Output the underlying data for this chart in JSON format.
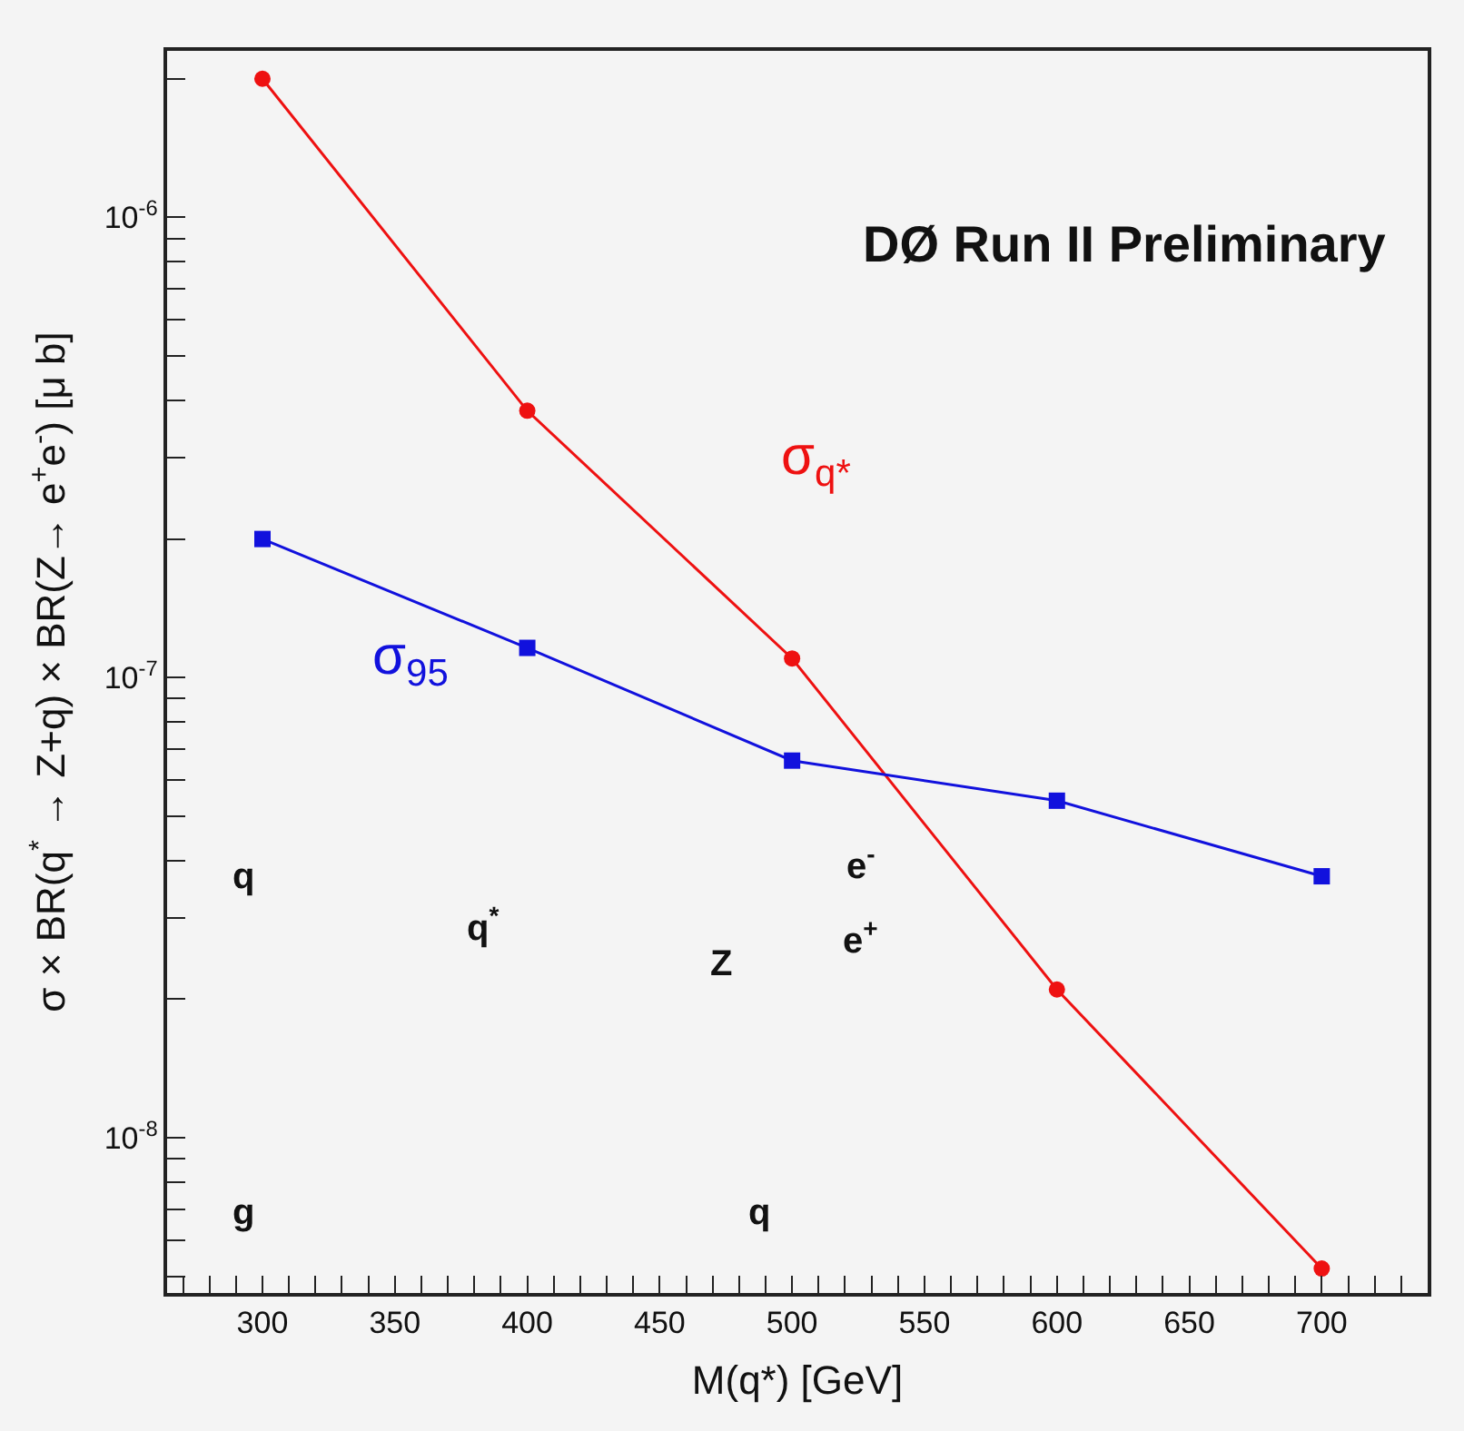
{
  "chart_data": {
    "type": "line",
    "xlabel": "M(q*) [GeV]",
    "ylabel": "σ × BR(q$^{*}$ → Z+q) × BR(Z→ e$^{+}$e$^{-}$) [μ b]",
    "x": [
      300,
      400,
      500,
      600,
      700
    ],
    "series": [
      {
        "name": "σ$_{q*}$",
        "color": "#ee1111",
        "marker": "circle",
        "values": [
          2e-06,
          3.8e-07,
          1.1e-07,
          2.1e-08,
          5.2e-09
        ]
      },
      {
        "name": "σ$_{95}$",
        "color": "#1111dd",
        "marker": "square",
        "values": [
          2e-07,
          1.16e-07,
          6.6e-08,
          5.4e-08,
          3.7e-08
        ]
      }
    ],
    "log": "y",
    "xlim": [
      264,
      740
    ],
    "ylim": [
      4.6e-09,
      2.3e-06
    ],
    "xticks": [
      {
        "value": 270,
        "label": null
      },
      {
        "value": 280,
        "label": null
      },
      {
        "value": 290,
        "label": null
      },
      300,
      {
        "value": 310,
        "label": null
      },
      {
        "value": 320,
        "label": null
      },
      {
        "value": 330,
        "label": null
      },
      {
        "value": 340,
        "label": null
      },
      350,
      {
        "value": 360,
        "label": null
      },
      {
        "value": 370,
        "label": null
      },
      {
        "value": 380,
        "label": null
      },
      {
        "value": 390,
        "label": null
      },
      400,
      {
        "value": 410,
        "label": null
      },
      {
        "value": 420,
        "label": null
      },
      {
        "value": 430,
        "label": null
      },
      {
        "value": 440,
        "label": null
      },
      450,
      {
        "value": 460,
        "label": null
      },
      {
        "value": 470,
        "label": null
      },
      {
        "value": 480,
        "label": null
      },
      {
        "value": 490,
        "label": null
      },
      500,
      {
        "value": 510,
        "label": null
      },
      {
        "value": 520,
        "label": null
      },
      {
        "value": 530,
        "label": null
      },
      {
        "value": 540,
        "label": null
      },
      550,
      {
        "value": 560,
        "label": null
      },
      {
        "value": 570,
        "label": null
      },
      {
        "value": 580,
        "label": null
      },
      {
        "value": 590,
        "label": null
      },
      600,
      {
        "value": 610,
        "label": null
      },
      {
        "value": 620,
        "label": null
      },
      {
        "value": 630,
        "label": null
      },
      {
        "value": 640,
        "label": null
      },
      650,
      {
        "value": 660,
        "label": null
      },
      {
        "value": 670,
        "label": null
      },
      {
        "value": 680,
        "label": null
      },
      {
        "value": 690,
        "label": null
      },
      700,
      {
        "value": 710,
        "label": null
      },
      {
        "value": 720,
        "label": null
      },
      {
        "value": 730,
        "label": null
      }
    ],
    "yticks": [
      {
        "value": 5e-09,
        "label": null
      },
      {
        "value": 6e-09,
        "label": null
      },
      {
        "value": 7e-09,
        "label": null
      },
      {
        "value": 8e-09,
        "label": null
      },
      {
        "value": 9e-09,
        "label": null
      },
      {
        "value": 1e-08,
        "label": "10$^{-8}$"
      },
      {
        "value": 2e-08,
        "label": null
      },
      {
        "value": 3e-08,
        "label": null
      },
      {
        "value": 4e-08,
        "label": null
      },
      {
        "value": 5e-08,
        "label": null
      },
      {
        "value": 6e-08,
        "label": null
      },
      {
        "value": 7e-08,
        "label": null
      },
      {
        "value": 8e-08,
        "label": null
      },
      {
        "value": 9e-08,
        "label": null
      },
      {
        "value": 1e-07,
        "label": "10$^{-7}$"
      },
      {
        "value": 2e-07,
        "label": null
      },
      {
        "value": 3e-07,
        "label": null
      },
      {
        "value": 4e-07,
        "label": null
      },
      {
        "value": 5e-07,
        "label": null
      },
      {
        "value": 6e-07,
        "label": null
      },
      {
        "value": 7e-07,
        "label": null
      },
      {
        "value": 8e-07,
        "label": null
      },
      {
        "value": 9e-07,
        "label": null
      },
      {
        "value": 1e-06,
        "label": "10$^{-6}$"
      },
      {
        "value": 2e-06,
        "label": null
      }
    ],
    "grid": false,
    "legend": false,
    "annotations": [
      "DØ Run II Preliminary",
      "q",
      "q$^{*}$",
      "Z",
      "e$^{-}$",
      "e$^{+}$",
      "g",
      "q"
    ]
  }
}
